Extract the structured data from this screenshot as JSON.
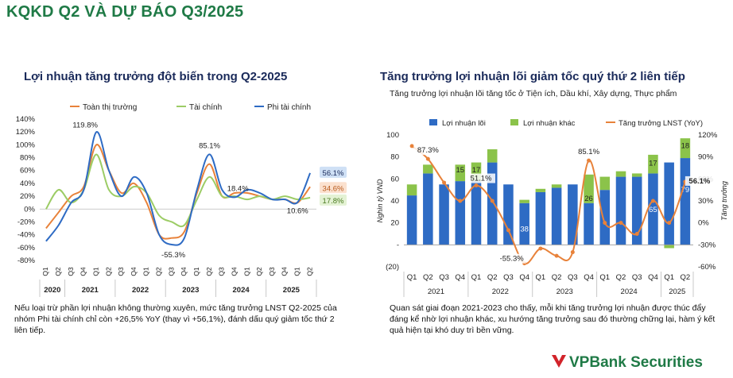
{
  "page_title": "KQKD Q2 VÀ DỰ BÁO Q3/2025",
  "brand": {
    "name": "VPBank Securities",
    "logo_color": "#d2232a"
  },
  "colors": {
    "green": "#1f7a46",
    "blue_bar": "#2e6bc4",
    "green_bar": "#8bc34a",
    "orange": "#e8823a",
    "navy": "#1a2a5a"
  },
  "chart_data": [
    {
      "type": "line",
      "title": "Lợi nhuận tăng trưởng đột biến trong Q2-2025",
      "quarters": [
        "Q1",
        "Q2",
        "Q3",
        "Q4",
        "Q1",
        "Q2",
        "Q3",
        "Q4",
        "Q1",
        "Q2",
        "Q3",
        "Q4",
        "Q1",
        "Q2",
        "Q3",
        "Q4",
        "Q1",
        "Q2",
        "Q3",
        "Q4",
        "Q1",
        "Q2"
      ],
      "years": [
        "2020",
        "2021",
        "2022",
        "2023",
        "2024",
        "2025"
      ],
      "ylim": [
        -80,
        140
      ],
      "yticks": [
        "140%",
        "120%",
        "100%",
        "80%",
        "60%",
        "40%",
        "20%",
        "0%",
        "-20%",
        "-40%",
        "-60%",
        "-80%"
      ],
      "series": [
        {
          "name": "Toàn thị trường",
          "color": "#e8823a",
          "values": [
            -30,
            -5,
            20,
            35,
            100,
            60,
            25,
            40,
            10,
            -40,
            -45,
            -35,
            25,
            70,
            20,
            25,
            25,
            20,
            15,
            15,
            10,
            34.6
          ]
        },
        {
          "name": "Tài chính",
          "color": "#9ccc65",
          "values": [
            0,
            30,
            10,
            30,
            85,
            30,
            20,
            35,
            25,
            -10,
            -20,
            -25,
            15,
            50,
            20,
            20,
            15,
            20,
            15,
            20,
            15,
            17.8
          ]
        },
        {
          "name": "Phi tài chính",
          "color": "#2e6bc4",
          "values": [
            -50,
            -25,
            10,
            30,
            119.8,
            60,
            20,
            50,
            25,
            -40,
            -55.3,
            -45,
            30,
            85.1,
            30,
            18.4,
            30,
            25,
            15,
            15,
            10.6,
            56.1
          ]
        }
      ],
      "annotations": [
        "119.8%",
        "85.1%",
        "-55.3%",
        "18.4%",
        "10.6%"
      ],
      "end_labels": [
        "56.1%",
        "34.6%",
        "17.8%"
      ]
    },
    {
      "type": "bar",
      "title": "Tăng trưởng lợi nhuận lõi giảm tốc quý thứ 2 liên tiếp",
      "subtitle": "Tăng trưởng lợi nhuận lõi tăng tốc ở Tiện ích, Dầu khí, Xây dựng, Thực phẩm",
      "ylabel": "Nghìn tỷ VND",
      "y2label": "Tăng trưởng",
      "ylim": [
        -20,
        100
      ],
      "y2lim": [
        -60,
        120
      ],
      "yticks": [
        "100",
        "80",
        "60",
        "40",
        "20",
        "-",
        "(20)"
      ],
      "y2ticks": [
        "120%",
        "90%",
        "60%",
        "30%",
        "0%",
        "-30%",
        "-60%"
      ],
      "quarters": [
        "Q1",
        "Q2",
        "Q3",
        "Q4",
        "Q1",
        "Q2",
        "Q3",
        "Q4",
        "Q1",
        "Q2",
        "Q3",
        "Q4",
        "Q1",
        "Q2",
        "Q3",
        "Q4",
        "Q1",
        "Q2"
      ],
      "years": [
        "2021",
        "2022",
        "2023",
        "2024",
        "2025"
      ],
      "series": [
        {
          "name": "Lợi nhuận lõi",
          "color": "#2e6bc4",
          "values": [
            45,
            65,
            55,
            58,
            58,
            75,
            55,
            38,
            48,
            52,
            55,
            38,
            50,
            62,
            62,
            65,
            75,
            79
          ]
        },
        {
          "name": "Lợi nhuận khác",
          "color": "#8bc34a",
          "values": [
            10,
            8,
            0,
            15,
            17,
            12,
            0,
            3,
            3,
            3,
            0,
            26,
            12,
            5,
            3,
            17,
            -3,
            18
          ]
        },
        {
          "name": "Tăng trưởng LNST (YoY)",
          "color": "#e8823a",
          "values": [
            105,
            87.3,
            55,
            30,
            51.1,
            30,
            -10,
            -55.3,
            -35,
            -45,
            -40,
            85.1,
            0,
            0,
            -15,
            30,
            0,
            56.1
          ]
        }
      ],
      "bar_labels": [
        "15",
        "17",
        "26",
        "17",
        "18",
        "79",
        "38",
        "65"
      ],
      "line_labels": [
        "87.3%",
        "51.1%",
        "-55.3%",
        "85.1%",
        "56.1%"
      ]
    }
  ],
  "notes": {
    "left": "Nếu loại trừ phần lợi nhuận không thường xuyên, mức tăng trưởng LNST Q2-2025 của nhóm Phi tài chính chỉ còn +26,5% YoY (thay vì +56,1%), đánh dấu quý giảm tốc thứ 2 liên tiếp.",
    "right": "Quan sát giai đoạn 2021-2023 cho thấy, mỗi khi tăng trưởng lợi nhuận được thúc đẩy đáng kể nhờ lợi nhuận khác, xu hướng tăng trưởng sau đó thường chững lại, hàm ý kết quả hiện tại khó duy trì bền vững."
  }
}
